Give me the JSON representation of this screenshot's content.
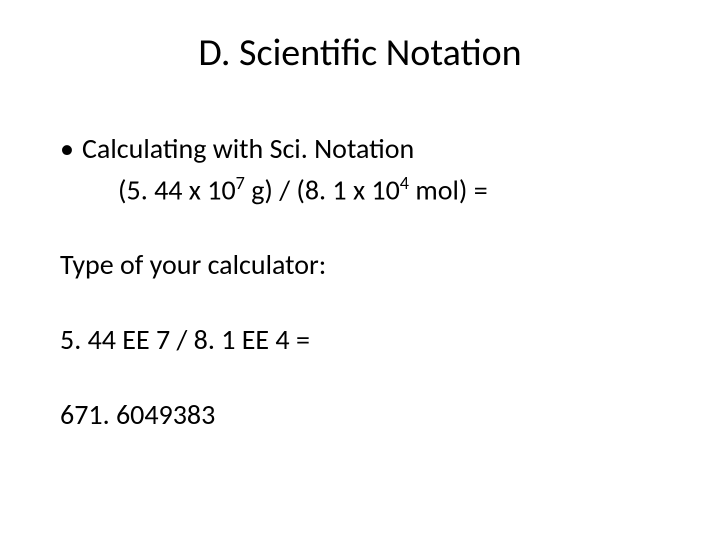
{
  "title": "D. Scientific Notation",
  "bullet": {
    "marker": "•",
    "text": "Calculating with Sci. Notation"
  },
  "equation": {
    "lparen": "(",
    "coef1": "5. 44 x 10",
    "exp1": "7",
    "unit1": " g) / (",
    "coef2": "8. 1 x 10",
    "exp2": "4",
    "unit2": " mol) ="
  },
  "calculator_label": "Type of your calculator:",
  "calculator_entry": "5. 44 EE 7 / 8. 1 EE 4 =",
  "result": "671. 6049383",
  "colors": {
    "background": "#ffffff",
    "text": "#000000"
  },
  "fonts": {
    "title_size": 38,
    "body_size": 28,
    "family": "Calibri"
  }
}
